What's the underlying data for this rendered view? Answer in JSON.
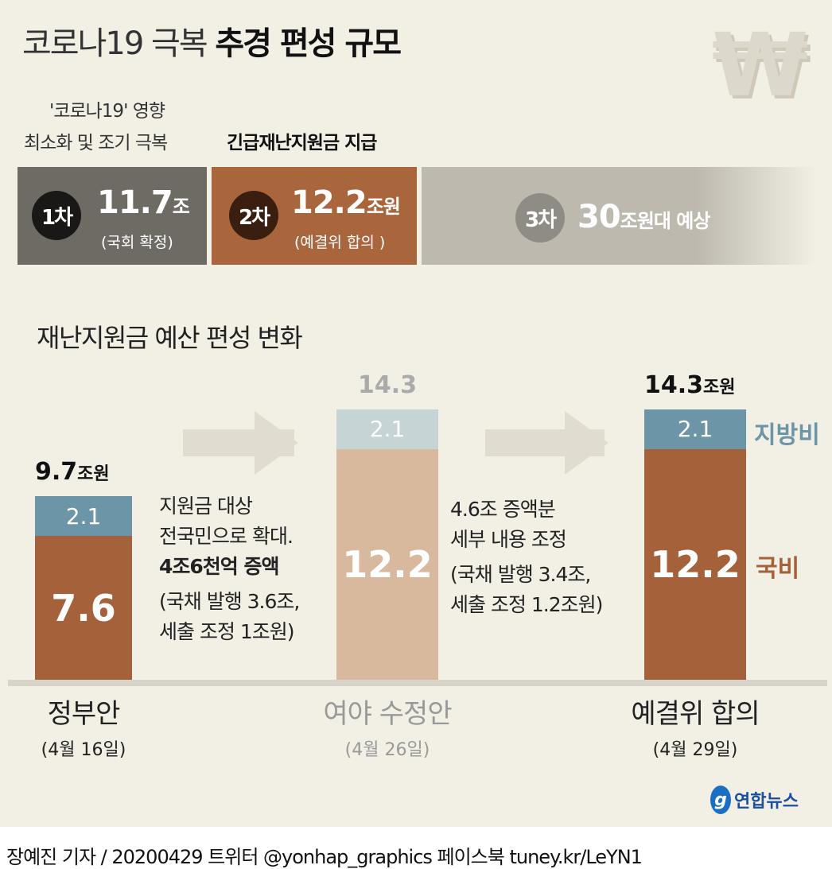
{
  "title": {
    "light": "코로나19 극복",
    "bold": "추경 편성 규모"
  },
  "top": {
    "label1_line1": "'코로나19' 영향",
    "label1_line2": "최소화 및 조기 극복",
    "label2": "긴급재난지원금 지급",
    "rounds": [
      {
        "badge": "1차",
        "amount": "11.7",
        "unit": "조",
        "note": "(국회 확정)"
      },
      {
        "badge": "2차",
        "amount": "12.2",
        "unit": "조원",
        "note": "(예결위 합의 )"
      },
      {
        "badge": "3차",
        "amount": "30",
        "unit": "조원대 예상"
      }
    ]
  },
  "chart_data": {
    "type": "bar",
    "stacked": true,
    "title": "재난지원금 예산 편성 변화",
    "categories": [
      "정부안",
      "여야 수정안",
      "예결위 합의"
    ],
    "dates": [
      "(4월 16일)",
      "(4월 26일)",
      "(4월 29일)"
    ],
    "series": [
      {
        "name": "국비",
        "values": [
          7.6,
          12.2,
          12.2
        ],
        "color": "#a5623a"
      },
      {
        "name": "지방비",
        "values": [
          2.1,
          2.1,
          2.1
        ],
        "color": "#6c95a7"
      }
    ],
    "totals": [
      "9.7",
      "14.3",
      "14.3"
    ],
    "total_units": [
      "조원",
      "",
      "조원"
    ],
    "unit": "조원"
  },
  "annotations": {
    "a1": [
      "지원금 대상",
      "전국민으로 확대.",
      "4조6천억 증액",
      "(국채 발행 3.6조,",
      "세출 조정 1조원)"
    ],
    "a2": [
      "4.6조 증액분",
      "세부 내용 조정",
      "(국채 발행 3.4조,",
      "세출 조정 1.2조원)"
    ]
  },
  "legend": {
    "local": "지방비",
    "national": "국비"
  },
  "logo": "연합뉴스",
  "footer": "장예진 기자 / 20200429 트위터 @yonhap_graphics  페이스북 tuney.kr/LeYN1"
}
